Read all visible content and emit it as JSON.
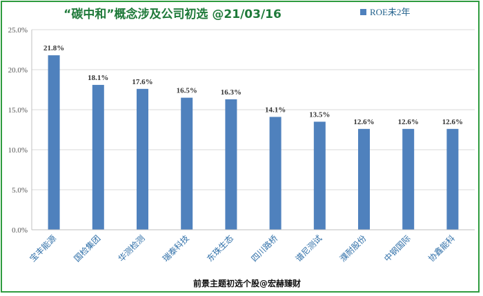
{
  "chart_data": {
    "type": "bar",
    "title": "“碳中和”概念涉及公司初选 @21/03/16",
    "legend": "ROE未2年",
    "categories": [
      "宝丰能源",
      "国检集团",
      "华测检测",
      "瑞泰科技",
      "东珠生态",
      "四川路桥",
      "谱尼测试",
      "濮耐股份",
      "中钢国际",
      "协鑫能科"
    ],
    "values": [
      21.8,
      18.1,
      17.6,
      16.5,
      16.3,
      14.1,
      13.5,
      12.6,
      12.6,
      12.6
    ],
    "value_labels": [
      "21.8%",
      "18.1%",
      "17.6%",
      "16.5%",
      "16.3%",
      "14.1%",
      "13.5%",
      "12.6%",
      "12.6%",
      "12.6%"
    ],
    "y_ticks": [
      "0.0%",
      "5.0%",
      "10.0%",
      "15.0%",
      "20.0%",
      "25.0%"
    ],
    "ylim": [
      0,
      25
    ],
    "grid": true,
    "legend_position": "top-right",
    "bar_color": "#4f81bd",
    "footer": "前景主题初选个股@宏赫臻财"
  }
}
